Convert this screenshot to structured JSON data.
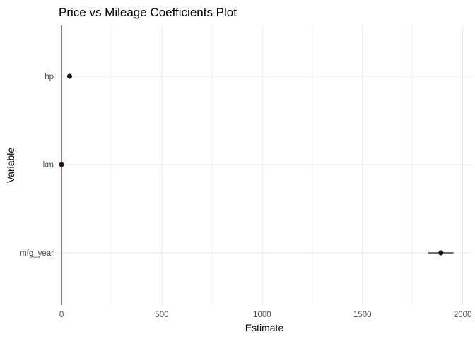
{
  "chart_data": {
    "type": "scatter",
    "title": "Price vs Mileage Coefficients Plot",
    "xlabel": "Estimate",
    "ylabel": "Variable",
    "xlim": [
      -18,
      2040
    ],
    "x_ticks": [
      0,
      500,
      1000,
      1500,
      2000
    ],
    "categories": [
      "hp",
      "km",
      "mfg_year"
    ],
    "series": [
      {
        "values": [
          {
            "variable": "hp",
            "estimate": 40,
            "low": 36,
            "high": 44
          },
          {
            "variable": "km",
            "estimate": 0,
            "low": -1,
            "high": 1
          },
          {
            "variable": "mfg_year",
            "estimate": 1891,
            "low": 1828,
            "high": 1954
          }
        ]
      }
    ],
    "reference_line": {
      "x": 0
    },
    "grid": true,
    "legend": "none",
    "colors": {
      "point": "#1a1a1a",
      "zero_line": "#7b2d7b",
      "grid": "#ebebeb",
      "tick_text": "#4d4d4d"
    }
  }
}
